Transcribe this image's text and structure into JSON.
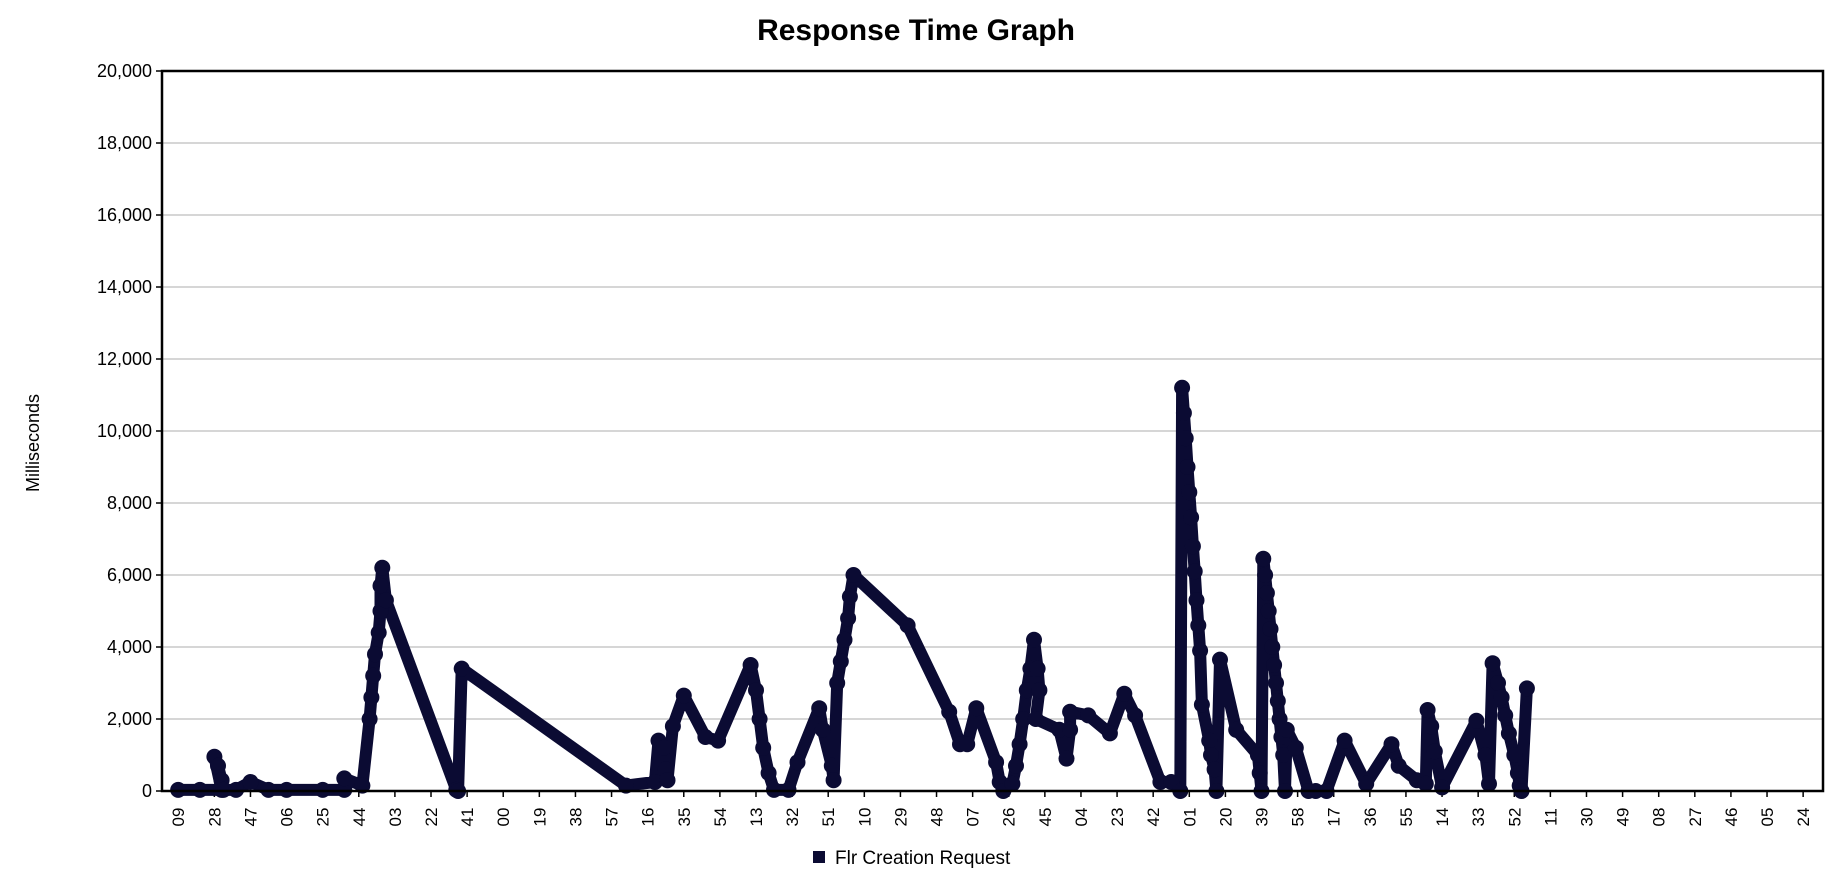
{
  "chart_data": {
    "type": "line",
    "title": "Response Time Graph",
    "xlabel": "",
    "ylabel": "Milliseconds",
    "ylim": [
      0,
      20000
    ],
    "y_ticks": [
      "0",
      "2,000",
      "4,000",
      "6,000",
      "8,000",
      "10,000",
      "12,000",
      "14,000",
      "16,000",
      "18,000",
      "20,000"
    ],
    "x_ticks": [
      "09",
      "28",
      "47",
      "06",
      "25",
      "44",
      "03",
      "22",
      "41",
      "00",
      "19",
      "38",
      "57",
      "16",
      "35",
      "54",
      "13",
      "32",
      "51",
      "10",
      "29",
      "48",
      "07",
      "26",
      "45",
      "04",
      "23",
      "42",
      "01",
      "20",
      "39",
      "58",
      "17",
      "36",
      "55",
      "14",
      "33",
      "52",
      "11",
      "30",
      "49",
      "08",
      "27",
      "46",
      "05",
      "24"
    ],
    "grid": true,
    "legend_position": "bottom",
    "colors": {
      "series": "#0b0b33",
      "grid": "#c8c8c8",
      "frame": "#000000"
    },
    "series": [
      {
        "name": "Flr Creation Request",
        "points": [
          [
            0.0,
            30
          ],
          [
            0.6,
            30
          ],
          [
            1.2,
            30
          ],
          [
            1.0,
            950
          ],
          [
            1.1,
            700
          ],
          [
            1.2,
            300
          ],
          [
            1.25,
            30
          ],
          [
            1.6,
            30
          ],
          [
            2.0,
            250
          ],
          [
            2.5,
            30
          ],
          [
            3.0,
            30
          ],
          [
            4.0,
            30
          ],
          [
            4.6,
            30
          ],
          [
            4.6,
            350
          ],
          [
            5.1,
            150
          ],
          [
            5.3,
            2000
          ],
          [
            5.35,
            2600
          ],
          [
            5.4,
            3200
          ],
          [
            5.45,
            3800
          ],
          [
            5.55,
            4400
          ],
          [
            5.6,
            5000
          ],
          [
            5.6,
            5700
          ],
          [
            5.65,
            6200
          ],
          [
            5.75,
            5300
          ],
          [
            7.7,
            30
          ],
          [
            7.75,
            0
          ],
          [
            7.85,
            3400
          ],
          [
            12.4,
            150
          ],
          [
            13.2,
            250
          ],
          [
            13.3,
            1400
          ],
          [
            13.45,
            1200
          ],
          [
            13.5,
            600
          ],
          [
            13.55,
            300
          ],
          [
            13.7,
            1800
          ],
          [
            14.0,
            2650
          ],
          [
            14.6,
            1500
          ],
          [
            14.95,
            1400
          ],
          [
            15.85,
            3500
          ],
          [
            16.0,
            2800
          ],
          [
            16.1,
            2000
          ],
          [
            16.2,
            1200
          ],
          [
            16.35,
            500
          ],
          [
            16.5,
            30
          ],
          [
            16.9,
            30
          ],
          [
            17.15,
            800
          ],
          [
            17.75,
            2300
          ],
          [
            17.85,
            1700
          ],
          [
            18.1,
            700
          ],
          [
            18.15,
            300
          ],
          [
            18.25,
            3000
          ],
          [
            18.35,
            3600
          ],
          [
            18.45,
            4200
          ],
          [
            18.55,
            4800
          ],
          [
            18.6,
            5400
          ],
          [
            18.7,
            6000
          ],
          [
            20.2,
            4600
          ],
          [
            21.35,
            2200
          ],
          [
            21.65,
            1300
          ],
          [
            21.85,
            1300
          ],
          [
            22.1,
            2300
          ],
          [
            22.65,
            800
          ],
          [
            22.75,
            250
          ],
          [
            22.85,
            0
          ],
          [
            23.1,
            200
          ],
          [
            23.2,
            700
          ],
          [
            23.3,
            1300
          ],
          [
            23.4,
            2000
          ],
          [
            23.5,
            2800
          ],
          [
            23.6,
            3400
          ],
          [
            23.7,
            4200
          ],
          [
            23.8,
            3400
          ],
          [
            23.85,
            2800
          ],
          [
            23.75,
            2000
          ],
          [
            24.4,
            1700
          ],
          [
            24.6,
            900
          ],
          [
            24.7,
            1700
          ],
          [
            24.7,
            2200
          ],
          [
            25.2,
            2100
          ],
          [
            25.8,
            1600
          ],
          [
            26.2,
            2700
          ],
          [
            26.5,
            2100
          ],
          [
            27.2,
            250
          ],
          [
            27.5,
            250
          ],
          [
            27.75,
            0
          ],
          [
            27.8,
            11200
          ],
          [
            27.85,
            10500
          ],
          [
            27.9,
            9800
          ],
          [
            27.95,
            9000
          ],
          [
            28.0,
            8300
          ],
          [
            28.05,
            7600
          ],
          [
            28.1,
            6800
          ],
          [
            28.15,
            6100
          ],
          [
            28.2,
            5300
          ],
          [
            28.25,
            4600
          ],
          [
            28.3,
            3900
          ],
          [
            28.35,
            2400
          ],
          [
            28.55,
            1400
          ],
          [
            28.6,
            1000
          ],
          [
            28.7,
            600
          ],
          [
            28.75,
            0
          ],
          [
            28.85,
            3650
          ],
          [
            29.3,
            1700
          ],
          [
            29.9,
            1000
          ],
          [
            29.95,
            500
          ],
          [
            30.0,
            0
          ],
          [
            30.05,
            6450
          ],
          [
            30.1,
            6000
          ],
          [
            30.15,
            5500
          ],
          [
            30.2,
            5000
          ],
          [
            30.25,
            4500
          ],
          [
            30.3,
            4000
          ],
          [
            30.35,
            3500
          ],
          [
            30.4,
            3000
          ],
          [
            30.45,
            2500
          ],
          [
            30.5,
            2000
          ],
          [
            30.55,
            1500
          ],
          [
            30.6,
            1000
          ],
          [
            30.65,
            0
          ],
          [
            30.7,
            1700
          ],
          [
            30.95,
            1200
          ],
          [
            31.3,
            0
          ],
          [
            31.5,
            0
          ],
          [
            31.8,
            0
          ],
          [
            32.3,
            1400
          ],
          [
            32.9,
            200
          ],
          [
            33.6,
            1300
          ],
          [
            33.8,
            700
          ],
          [
            34.3,
            300
          ],
          [
            34.55,
            200
          ],
          [
            34.6,
            2250
          ],
          [
            34.7,
            1800
          ],
          [
            34.8,
            1100
          ],
          [
            35.0,
            100
          ],
          [
            35.95,
            1950
          ],
          [
            36.2,
            1000
          ],
          [
            36.3,
            200
          ],
          [
            36.4,
            3550
          ],
          [
            36.55,
            3000
          ],
          [
            36.65,
            2600
          ],
          [
            36.75,
            2100
          ],
          [
            36.85,
            1600
          ],
          [
            37.0,
            1000
          ],
          [
            37.1,
            500
          ],
          [
            37.15,
            150
          ],
          [
            37.2,
            0
          ],
          [
            37.35,
            2850
          ]
        ]
      }
    ]
  }
}
